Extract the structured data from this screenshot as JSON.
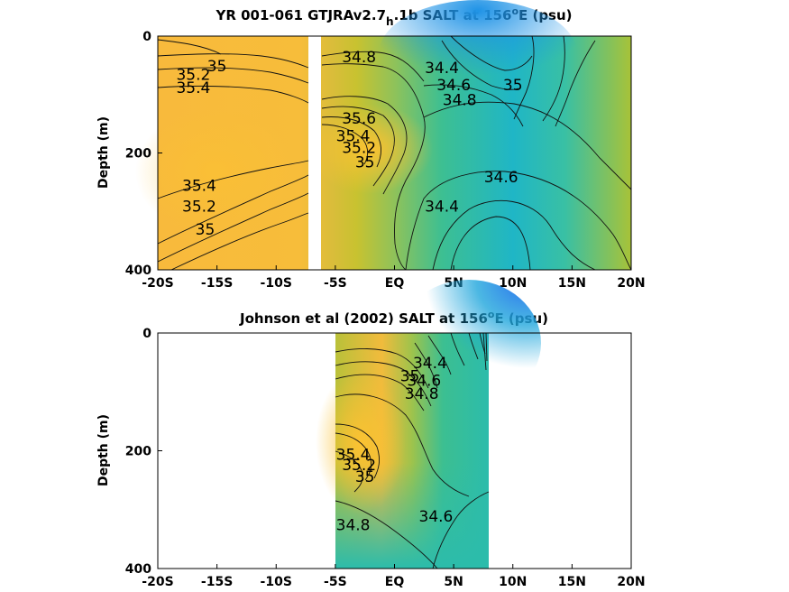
{
  "chart_data": [
    {
      "type": "heatmap",
      "title_main": "YR 001-061 GTJRAv2.7",
      "title_sub": "h",
      "title_rest": ".1b SALT at 156",
      "title_sup": "o",
      "title_end": "E (psu)",
      "ylabel": "Depth (m)",
      "xlim": [
        -20,
        20
      ],
      "ylim": [
        400,
        0
      ],
      "x_ticks": [
        {
          "value": -20,
          "label": "-20S"
        },
        {
          "value": -15,
          "label": "-15S"
        },
        {
          "value": -10,
          "label": "-10S"
        },
        {
          "value": -5,
          "label": "-5S"
        },
        {
          "value": 0,
          "label": "EQ"
        },
        {
          "value": 5,
          "label": "5N"
        },
        {
          "value": 10,
          "label": "10N"
        },
        {
          "value": 15,
          "label": "15N"
        },
        {
          "value": 20,
          "label": "20N"
        }
      ],
      "y_ticks": [
        {
          "value": 0,
          "label": "0"
        },
        {
          "value": 200,
          "label": "200"
        },
        {
          "value": 400,
          "label": "400"
        }
      ],
      "data_gap": [
        -7.3,
        -6.6
      ],
      "contour_labels": [
        {
          "text": "35",
          "x": -15,
          "y": 60
        },
        {
          "text": "35.2",
          "x": -17,
          "y": 75
        },
        {
          "text": "35.4",
          "x": -17,
          "y": 97
        },
        {
          "text": "34.8",
          "x": -3,
          "y": 45
        },
        {
          "text": "34.4",
          "x": 4,
          "y": 63
        },
        {
          "text": "34.6",
          "x": 5,
          "y": 93
        },
        {
          "text": "35",
          "x": 10,
          "y": 93
        },
        {
          "text": "34.8",
          "x": 5.5,
          "y": 118
        },
        {
          "text": "35.6",
          "x": -3,
          "y": 150
        },
        {
          "text": "35.4",
          "x": -3.5,
          "y": 180
        },
        {
          "text": "35.2",
          "x": -3,
          "y": 200
        },
        {
          "text": "35",
          "x": -2.5,
          "y": 225
        },
        {
          "text": "34.6",
          "x": 9,
          "y": 250
        },
        {
          "text": "35.4",
          "x": -16.5,
          "y": 265
        },
        {
          "text": "35.2",
          "x": -16.5,
          "y": 300
        },
        {
          "text": "35",
          "x": -16,
          "y": 340
        },
        {
          "text": "34.4",
          "x": 4,
          "y": 300
        }
      ]
    },
    {
      "type": "heatmap",
      "title_main": "Johnson et al (2002) SALT at 156",
      "title_sup": "o",
      "title_end": "E (psu)",
      "ylabel": "Depth (m)",
      "xlim": [
        -20,
        20
      ],
      "ylim": [
        400,
        0
      ],
      "x_ticks": [
        {
          "value": -20,
          "label": "-20S"
        },
        {
          "value": -15,
          "label": "-15S"
        },
        {
          "value": -10,
          "label": "-10S"
        },
        {
          "value": -5,
          "label": "-5S"
        },
        {
          "value": 0,
          "label": "EQ"
        },
        {
          "value": 5,
          "label": "5N"
        },
        {
          "value": 10,
          "label": "10N"
        },
        {
          "value": 15,
          "label": "15N"
        },
        {
          "value": 20,
          "label": "20N"
        }
      ],
      "y_ticks": [
        {
          "value": 0,
          "label": "0"
        },
        {
          "value": 200,
          "label": "200"
        },
        {
          "value": 400,
          "label": "400"
        }
      ],
      "data_range": [
        -5,
        8
      ],
      "contour_labels": [
        {
          "text": "34.4",
          "x": 3,
          "y": 60
        },
        {
          "text": "34.6",
          "x": 2.5,
          "y": 90
        },
        {
          "text": "34.8",
          "x": 2.3,
          "y": 112
        },
        {
          "text": "35",
          "x": 1.3,
          "y": 82
        },
        {
          "text": "35.4",
          "x": -3.5,
          "y": 215
        },
        {
          "text": "35.2",
          "x": -3,
          "y": 233
        },
        {
          "text": "35",
          "x": -2.5,
          "y": 253
        },
        {
          "text": "34.6",
          "x": 3.5,
          "y": 320
        },
        {
          "text": "34.8",
          "x": -3.5,
          "y": 335
        }
      ]
    }
  ]
}
